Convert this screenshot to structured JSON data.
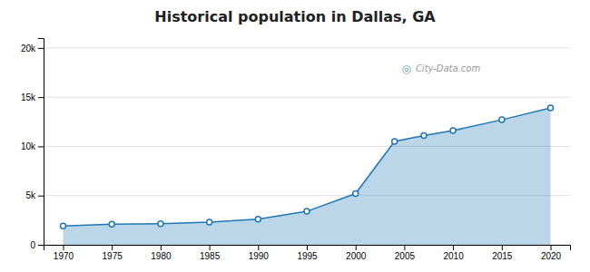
{
  "chart_data": {
    "type": "area",
    "title": "Historical population in Dallas, GA",
    "x": [
      1970,
      1975,
      1980,
      1985,
      1990,
      1995,
      2000,
      2004,
      2007,
      2010,
      2015,
      2020
    ],
    "values": [
      1900,
      2100,
      2150,
      2300,
      2600,
      3400,
      5200,
      10500,
      11100,
      11600,
      12700,
      13900
    ],
    "xlim": [
      1968,
      2022
    ],
    "xticks": [
      1970,
      1975,
      1980,
      1985,
      1990,
      1995,
      2000,
      2005,
      2010,
      2015,
      2020
    ],
    "ylim": [
      0,
      21000
    ],
    "yticks": [
      0,
      {
        "value": 5000,
        "label": "5k"
      },
      {
        "value": 10000,
        "label": "10k"
      },
      {
        "value": 15000,
        "label": "15k"
      },
      {
        "value": 20000,
        "label": "20k"
      }
    ],
    "grid": true,
    "marker": "circle",
    "annotations": [
      "◎",
      "City-Data.com"
    ]
  }
}
